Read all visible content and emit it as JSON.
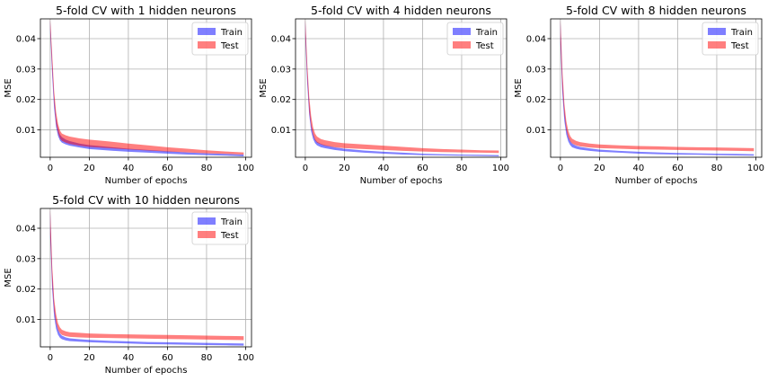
{
  "figure": {
    "background": "#ffffff",
    "train_color": "#0000ff",
    "test_color": "#ff0000",
    "band_opacity": 0.5
  },
  "chart_data": [
    {
      "type": "area",
      "title": "5-fold CV with 1 hidden neurons",
      "xlabel": "Number of epochs",
      "ylabel": "MSE",
      "xlim": [
        -5,
        103
      ],
      "ylim": [
        0.001,
        0.0465
      ],
      "xticks": [
        0,
        20,
        40,
        60,
        80,
        100
      ],
      "yticks": [
        0.01,
        0.02,
        0.03,
        0.04
      ],
      "ytick_labels": [
        "0.01",
        "0.02",
        "0.03",
        "0.04"
      ],
      "grid": true,
      "legend": {
        "position": "top-right",
        "entries": [
          "Train",
          "Test"
        ]
      },
      "series": [
        {
          "name": "Train",
          "x": [
            0,
            1,
            2,
            3,
            4,
            5,
            6,
            8,
            10,
            15,
            20,
            30,
            40,
            50,
            60,
            70,
            80,
            90,
            99
          ],
          "lower": [
            0.042,
            0.028,
            0.017,
            0.011,
            0.008,
            0.0065,
            0.0058,
            0.0052,
            0.0048,
            0.0042,
            0.0037,
            0.0032,
            0.0028,
            0.0025,
            0.0022,
            0.0019,
            0.0017,
            0.0015,
            0.0013
          ],
          "upper": [
            0.046,
            0.033,
            0.021,
            0.014,
            0.0105,
            0.0085,
            0.0076,
            0.0068,
            0.0063,
            0.0055,
            0.005,
            0.0044,
            0.0038,
            0.0034,
            0.003,
            0.0026,
            0.0023,
            0.0021,
            0.0019
          ]
        },
        {
          "name": "Test",
          "x": [
            0,
            1,
            2,
            3,
            4,
            5,
            6,
            8,
            10,
            15,
            20,
            30,
            40,
            50,
            60,
            70,
            80,
            90,
            99
          ],
          "lower": [
            0.043,
            0.03,
            0.019,
            0.012,
            0.009,
            0.0072,
            0.0064,
            0.0058,
            0.0054,
            0.0048,
            0.0044,
            0.004,
            0.0036,
            0.0032,
            0.0029,
            0.0026,
            0.0023,
            0.0021,
            0.0019
          ],
          "upper": [
            0.0465,
            0.035,
            0.023,
            0.016,
            0.012,
            0.0098,
            0.0088,
            0.0082,
            0.0078,
            0.0072,
            0.0068,
            0.0062,
            0.0055,
            0.0049,
            0.0043,
            0.0038,
            0.0033,
            0.0029,
            0.0026
          ]
        }
      ]
    },
    {
      "type": "area",
      "title": "5-fold CV with 4 hidden neurons",
      "xlabel": "Number of epochs",
      "ylabel": "MSE",
      "xlim": [
        -5,
        103
      ],
      "ylim": [
        0.001,
        0.0465
      ],
      "xticks": [
        0,
        20,
        40,
        60,
        80,
        100
      ],
      "yticks": [
        0.01,
        0.02,
        0.03,
        0.04
      ],
      "ytick_labels": [
        "0.01",
        "0.02",
        "0.03",
        "0.04"
      ],
      "grid": true,
      "legend": {
        "position": "top-right",
        "entries": [
          "Train",
          "Test"
        ]
      },
      "series": [
        {
          "name": "Train",
          "x": [
            0,
            1,
            2,
            3,
            4,
            5,
            6,
            8,
            10,
            15,
            20,
            30,
            40,
            50,
            60,
            70,
            80,
            90,
            99
          ],
          "lower": [
            0.04,
            0.025,
            0.015,
            0.0095,
            0.007,
            0.0056,
            0.0049,
            0.0043,
            0.004,
            0.0034,
            0.003,
            0.0025,
            0.0022,
            0.0019,
            0.0017,
            0.0016,
            0.0015,
            0.0014,
            0.0013
          ],
          "upper": [
            0.046,
            0.03,
            0.019,
            0.012,
            0.0088,
            0.007,
            0.0061,
            0.0054,
            0.005,
            0.0043,
            0.0038,
            0.0032,
            0.0028,
            0.0025,
            0.0022,
            0.002,
            0.0019,
            0.0018,
            0.0017
          ]
        },
        {
          "name": "Test",
          "x": [
            0,
            1,
            2,
            3,
            4,
            5,
            6,
            8,
            10,
            15,
            20,
            30,
            40,
            50,
            60,
            70,
            80,
            90,
            99
          ],
          "lower": [
            0.041,
            0.027,
            0.016,
            0.011,
            0.0082,
            0.0066,
            0.0058,
            0.0052,
            0.0048,
            0.0043,
            0.004,
            0.0037,
            0.0034,
            0.0031,
            0.0029,
            0.0027,
            0.0026,
            0.0025,
            0.0024
          ],
          "upper": [
            0.0465,
            0.032,
            0.021,
            0.0145,
            0.0108,
            0.0088,
            0.0078,
            0.007,
            0.0066,
            0.006,
            0.0056,
            0.0052,
            0.0048,
            0.0044,
            0.004,
            0.0037,
            0.0035,
            0.0033,
            0.0032
          ]
        }
      ]
    },
    {
      "type": "area",
      "title": "5-fold CV with 8 hidden neurons",
      "xlabel": "Number of epochs",
      "ylabel": "MSE",
      "xlim": [
        -5,
        103
      ],
      "ylim": [
        0.001,
        0.0465
      ],
      "xticks": [
        0,
        20,
        40,
        60,
        80,
        100
      ],
      "yticks": [
        0.01,
        0.02,
        0.03,
        0.04
      ],
      "ytick_labels": [
        "0.01",
        "0.02",
        "0.03",
        "0.04"
      ],
      "grid": true,
      "legend": {
        "position": "top-right",
        "entries": [
          "Train",
          "Test"
        ]
      },
      "series": [
        {
          "name": "Train",
          "x": [
            0,
            1,
            2,
            3,
            4,
            5,
            6,
            8,
            10,
            15,
            20,
            30,
            40,
            50,
            60,
            70,
            80,
            90,
            99
          ],
          "lower": [
            0.038,
            0.022,
            0.013,
            0.0085,
            0.0062,
            0.005,
            0.0043,
            0.0038,
            0.0035,
            0.0031,
            0.0028,
            0.0025,
            0.0022,
            0.002,
            0.0019,
            0.0018,
            0.0017,
            0.0016,
            0.0015
          ],
          "upper": [
            0.046,
            0.028,
            0.017,
            0.011,
            0.008,
            0.0064,
            0.0055,
            0.0048,
            0.0044,
            0.0039,
            0.0035,
            0.0031,
            0.0028,
            0.0026,
            0.0024,
            0.0023,
            0.0022,
            0.0021,
            0.002
          ]
        },
        {
          "name": "Test",
          "x": [
            0,
            1,
            2,
            3,
            4,
            5,
            6,
            8,
            10,
            15,
            20,
            30,
            40,
            50,
            60,
            70,
            80,
            90,
            99
          ],
          "lower": [
            0.039,
            0.024,
            0.015,
            0.01,
            0.0075,
            0.0062,
            0.0055,
            0.0049,
            0.0046,
            0.0042,
            0.004,
            0.0038,
            0.0036,
            0.0035,
            0.0034,
            0.0033,
            0.0032,
            0.0031,
            0.003
          ],
          "upper": [
            0.0465,
            0.03,
            0.019,
            0.013,
            0.0098,
            0.008,
            0.0071,
            0.0064,
            0.006,
            0.0055,
            0.0052,
            0.0049,
            0.0047,
            0.0046,
            0.0044,
            0.0043,
            0.0042,
            0.0041,
            0.004
          ]
        }
      ]
    },
    {
      "type": "area",
      "title": "5-fold CV with 10 hidden neurons",
      "xlabel": "Number of epochs",
      "ylabel": "MSE",
      "xlim": [
        -5,
        103
      ],
      "ylim": [
        0.001,
        0.0465
      ],
      "xticks": [
        0,
        20,
        40,
        60,
        80,
        100
      ],
      "yticks": [
        0.01,
        0.02,
        0.03,
        0.04
      ],
      "ytick_labels": [
        "0.01",
        "0.02",
        "0.03",
        "0.04"
      ],
      "grid": true,
      "legend": {
        "position": "top-right",
        "entries": [
          "Train",
          "Test"
        ]
      },
      "series": [
        {
          "name": "Train",
          "x": [
            0,
            1,
            2,
            3,
            4,
            5,
            6,
            8,
            10,
            15,
            20,
            30,
            40,
            50,
            60,
            70,
            80,
            90,
            99
          ],
          "lower": [
            0.037,
            0.02,
            0.011,
            0.007,
            0.005,
            0.004,
            0.0035,
            0.0031,
            0.0029,
            0.0027,
            0.0025,
            0.0023,
            0.0021,
            0.0019,
            0.0018,
            0.0017,
            0.0016,
            0.0015,
            0.0014
          ],
          "upper": [
            0.046,
            0.026,
            0.015,
            0.0095,
            0.0068,
            0.0054,
            0.0047,
            0.0041,
            0.0038,
            0.0035,
            0.0033,
            0.003,
            0.0028,
            0.0026,
            0.0025,
            0.0024,
            0.0023,
            0.0022,
            0.0021
          ]
        },
        {
          "name": "Test",
          "x": [
            0,
            1,
            2,
            3,
            4,
            5,
            6,
            8,
            10,
            15,
            20,
            30,
            40,
            50,
            60,
            70,
            80,
            90,
            99
          ],
          "lower": [
            0.038,
            0.022,
            0.013,
            0.0088,
            0.0066,
            0.0055,
            0.0049,
            0.0045,
            0.0043,
            0.0041,
            0.004,
            0.0039,
            0.0038,
            0.0037,
            0.0036,
            0.0035,
            0.0034,
            0.0033,
            0.0032
          ],
          "upper": [
            0.0465,
            0.028,
            0.017,
            0.0118,
            0.0088,
            0.0074,
            0.0066,
            0.0061,
            0.0058,
            0.0056,
            0.0054,
            0.0052,
            0.0051,
            0.005,
            0.0049,
            0.0048,
            0.0047,
            0.0046,
            0.0045
          ]
        }
      ]
    }
  ]
}
